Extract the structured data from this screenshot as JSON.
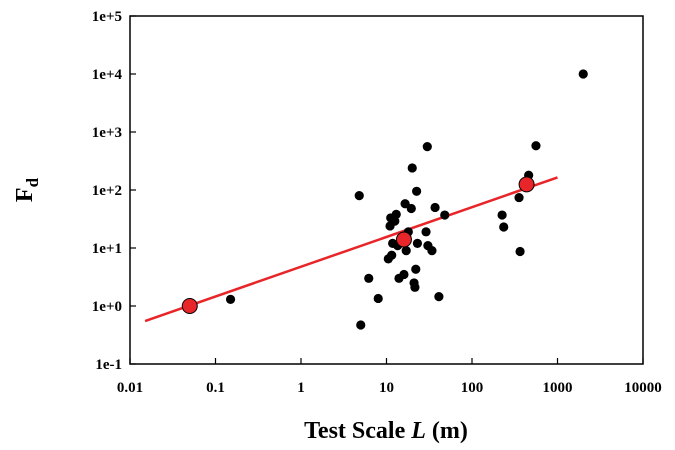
{
  "chart_data": {
    "type": "scatter",
    "xlabel_parts": {
      "before": "Test Scale ",
      "italic": "L",
      "after": " (m)"
    },
    "ylabel_parts": {
      "base": "F",
      "sub": "d"
    },
    "x_scale": "log",
    "y_scale": "log",
    "xlim": [
      0.01,
      10000
    ],
    "ylim": [
      0.1,
      100000
    ],
    "x_ticks": [
      0.01,
      0.1,
      1,
      10,
      100,
      1000,
      10000
    ],
    "x_tick_labels": [
      "0.01",
      "0.1",
      "1",
      "10",
      "100",
      "1000",
      "10000"
    ],
    "y_ticks": [
      0.1,
      1,
      10,
      100,
      1000,
      10000,
      100000
    ],
    "y_tick_labels": [
      "1e-1",
      "1e+0",
      "1e+1",
      "1e+2",
      "1e+3",
      "1e+4",
      "1e+5"
    ],
    "grid": false,
    "colors": {
      "points": "#000000",
      "highlight": "#e8262a",
      "fit_line": "#e8262a"
    },
    "points": [
      [
        0.15,
        1.3
      ],
      [
        4.8,
        80
      ],
      [
        5.0,
        0.47
      ],
      [
        6.2,
        3.0
      ],
      [
        8.0,
        1.35
      ],
      [
        10.5,
        6.5
      ],
      [
        11.0,
        24
      ],
      [
        11.2,
        33
      ],
      [
        11.5,
        7.5
      ],
      [
        11.8,
        12
      ],
      [
        12.5,
        29
      ],
      [
        13.0,
        38
      ],
      [
        13.5,
        11
      ],
      [
        14.0,
        3.0
      ],
      [
        15.0,
        13
      ],
      [
        16.0,
        3.5
      ],
      [
        16.5,
        58
      ],
      [
        17.0,
        9.0
      ],
      [
        18.0,
        19
      ],
      [
        19.5,
        48
      ],
      [
        20.0,
        240
      ],
      [
        21.0,
        2.5
      ],
      [
        21.5,
        2.1
      ],
      [
        22.0,
        4.3
      ],
      [
        22.5,
        95
      ],
      [
        23.0,
        12
      ],
      [
        29.0,
        19
      ],
      [
        30.0,
        560
      ],
      [
        30.5,
        11
      ],
      [
        34.0,
        9.0
      ],
      [
        37.0,
        50
      ],
      [
        41.0,
        1.45
      ],
      [
        48.0,
        37
      ],
      [
        225,
        37
      ],
      [
        235,
        23
      ],
      [
        355,
        74
      ],
      [
        365,
        8.7
      ],
      [
        460,
        180
      ],
      [
        560,
        580
      ],
      [
        2000,
        10000
      ]
    ],
    "highlight_points": [
      [
        0.05,
        1.0
      ],
      [
        16.0,
        14
      ],
      [
        435,
        125
      ]
    ],
    "fit_line": {
      "x": [
        0.015,
        1000
      ],
      "y": [
        0.55,
        165
      ]
    }
  }
}
